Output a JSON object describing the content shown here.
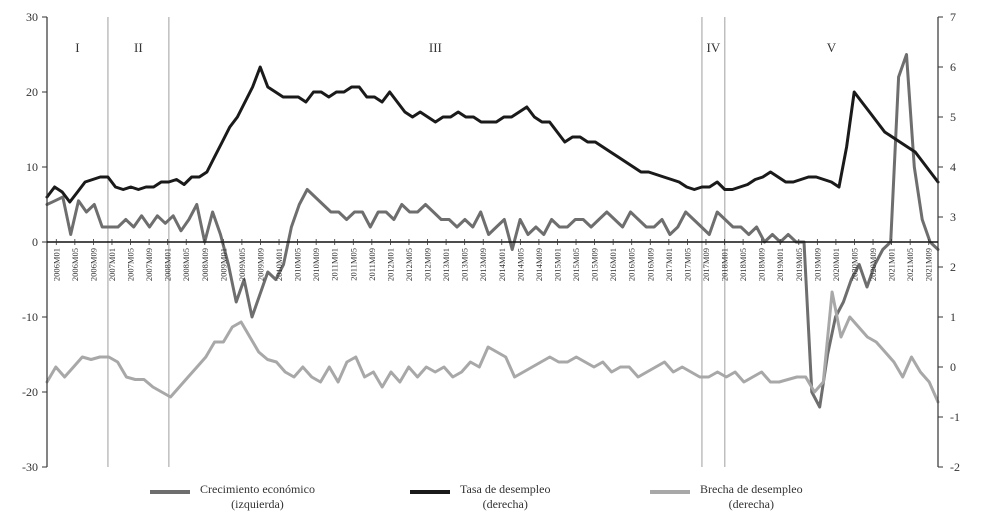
{
  "chart_data": {
    "type": "line",
    "periods": [
      {
        "label": "I",
        "start_index": 0
      },
      {
        "label": "II",
        "start_index": 8
      },
      {
        "label": "III",
        "start_index": 16
      },
      {
        "label": "IV",
        "start_index": 86
      },
      {
        "label": "V",
        "start_index": 89
      }
    ],
    "x_tick_labels": [
      "2006M01",
      "2006M05",
      "2006M09",
      "2007M01",
      "2007M05",
      "2007M09",
      "2008M01",
      "2008M05",
      "2008M09",
      "2009M01",
      "2009M05",
      "2009M09",
      "2010M01",
      "2010M05",
      "2010M09",
      "2011M01",
      "2011M05",
      "2011M09",
      "2012M01",
      "2012M05",
      "2012M09",
      "2013M01",
      "2013M05",
      "2013M09",
      "2014M01",
      "2014M05",
      "2014M09",
      "2015M01",
      "2015M05",
      "2015M09",
      "2016M01",
      "2016M05",
      "2016M09",
      "2017M01",
      "2017M05",
      "2017M09",
      "2018M01",
      "2018M05",
      "2018M09",
      "2019M01",
      "2019M05",
      "2019M09",
      "2020M01",
      "2020M05",
      "2020M09",
      "2021M01",
      "2021M05",
      "2021M09"
    ],
    "y_left": {
      "min": -30,
      "max": 30,
      "ticks": [
        30,
        20,
        10,
        0,
        -10,
        -20,
        -30
      ]
    },
    "y_right": {
      "min": -2,
      "max": 7,
      "ticks": [
        7,
        6,
        5,
        4,
        3,
        2,
        1,
        0,
        -1,
        -2
      ]
    },
    "series": [
      {
        "name": "Crecimiento económico (izquierda)",
        "axis": "left",
        "color": "#6e6e6e",
        "values": [
          5,
          5.5,
          6,
          1,
          5.5,
          4,
          5,
          2,
          2,
          2,
          3,
          2,
          3.5,
          2,
          3.5,
          2.5,
          3.5,
          1.5,
          3,
          5,
          0,
          4,
          1,
          -3,
          -8,
          -5,
          -10,
          -7,
          -4,
          -5,
          -3,
          2,
          5,
          7,
          6,
          5,
          4,
          4,
          3,
          4,
          4,
          2,
          4,
          4,
          3,
          5,
          4,
          4,
          5,
          4,
          3,
          3,
          2,
          3,
          2,
          4,
          1,
          2,
          3,
          -1,
          3,
          1,
          2,
          1,
          3,
          2,
          2,
          3,
          3,
          2,
          3,
          4,
          3,
          2,
          4,
          3,
          2,
          2,
          3,
          1,
          2,
          4,
          3,
          2,
          1,
          4,
          3,
          2,
          2,
          1,
          2,
          0,
          1,
          0,
          1,
          0,
          0,
          -20,
          -22,
          -15,
          -10,
          -8,
          -5,
          -3,
          -6,
          -3,
          -1,
          0,
          22,
          25,
          10,
          3,
          0,
          -1
        ]
      },
      {
        "name": "Tasa de desempleo (derecha)",
        "axis": "right",
        "color": "#1a1a1a",
        "values": [
          3.4,
          3.6,
          3.5,
          3.3,
          3.5,
          3.7,
          3.75,
          3.8,
          3.8,
          3.6,
          3.55,
          3.6,
          3.55,
          3.6,
          3.6,
          3.7,
          3.7,
          3.75,
          3.65,
          3.8,
          3.8,
          3.9,
          4.2,
          4.5,
          4.8,
          5.0,
          5.3,
          5.6,
          6.0,
          5.6,
          5.5,
          5.4,
          5.4,
          5.4,
          5.3,
          5.5,
          5.5,
          5.4,
          5.5,
          5.5,
          5.6,
          5.6,
          5.4,
          5.4,
          5.3,
          5.5,
          5.3,
          5.1,
          5.0,
          5.1,
          5.0,
          4.9,
          5.0,
          5.0,
          5.1,
          5.0,
          5.0,
          4.9,
          4.9,
          4.9,
          5.0,
          5.0,
          5.1,
          5.2,
          5.0,
          4.9,
          4.9,
          4.7,
          4.5,
          4.6,
          4.6,
          4.5,
          4.5,
          4.4,
          4.3,
          4.2,
          4.1,
          4.0,
          3.9,
          3.9,
          3.85,
          3.8,
          3.75,
          3.7,
          3.6,
          3.55,
          3.6,
          3.6,
          3.7,
          3.55,
          3.55,
          3.6,
          3.65,
          3.75,
          3.8,
          3.9,
          3.8,
          3.7,
          3.7,
          3.75,
          3.8,
          3.8,
          3.75,
          3.7,
          3.6,
          4.4,
          5.5,
          5.3,
          5.1,
          4.9,
          4.7,
          4.6,
          4.5,
          4.4,
          4.3,
          4.1,
          3.9,
          3.7
        ]
      },
      {
        "name": "Brecha de desempleo (derecha)",
        "axis": "right",
        "color": "#a8a8a8",
        "values": [
          -0.3,
          0,
          -0.2,
          0,
          0.2,
          0.15,
          0.2,
          0.2,
          0.1,
          -0.2,
          -0.25,
          -0.25,
          -0.4,
          -0.5,
          -0.6,
          -0.4,
          -0.2,
          0,
          0.2,
          0.5,
          0.5,
          0.8,
          0.9,
          0.6,
          0.3,
          0.15,
          0.1,
          -0.1,
          -0.2,
          0,
          -0.2,
          -0.3,
          0,
          -0.3,
          0.1,
          0.2,
          -0.2,
          -0.1,
          -0.4,
          -0.1,
          -0.3,
          0,
          -0.2,
          0,
          -0.1,
          0,
          -0.2,
          -0.1,
          0.1,
          0,
          0.4,
          0.3,
          0.2,
          -0.2,
          -0.1,
          0,
          0.1,
          0.2,
          0.1,
          0.1,
          0.2,
          0.1,
          0,
          0.1,
          -0.1,
          0,
          0,
          -0.2,
          -0.1,
          0,
          0.1,
          -0.1,
          0,
          -0.1,
          -0.2,
          -0.2,
          -0.1,
          -0.2,
          -0.1,
          -0.3,
          -0.2,
          -0.1,
          -0.3,
          -0.3,
          -0.25,
          -0.2,
          -0.2,
          -0.5,
          -0.3,
          1.5,
          0.6,
          1.0,
          0.8,
          0.6,
          0.5,
          0.3,
          0.1,
          -0.2,
          0.2,
          -0.1,
          -0.3,
          -0.7
        ]
      }
    ],
    "legend": [
      {
        "line1": "Crecimiento económico",
        "line2": "(izquierda)",
        "color": "#6e6e6e"
      },
      {
        "line1": "Tasa de desempleo",
        "line2": "(derecha)",
        "color": "#1a1a1a"
      },
      {
        "line1": "Brecha de desempleo",
        "line2": "(derecha)",
        "color": "#a8a8a8"
      }
    ]
  }
}
